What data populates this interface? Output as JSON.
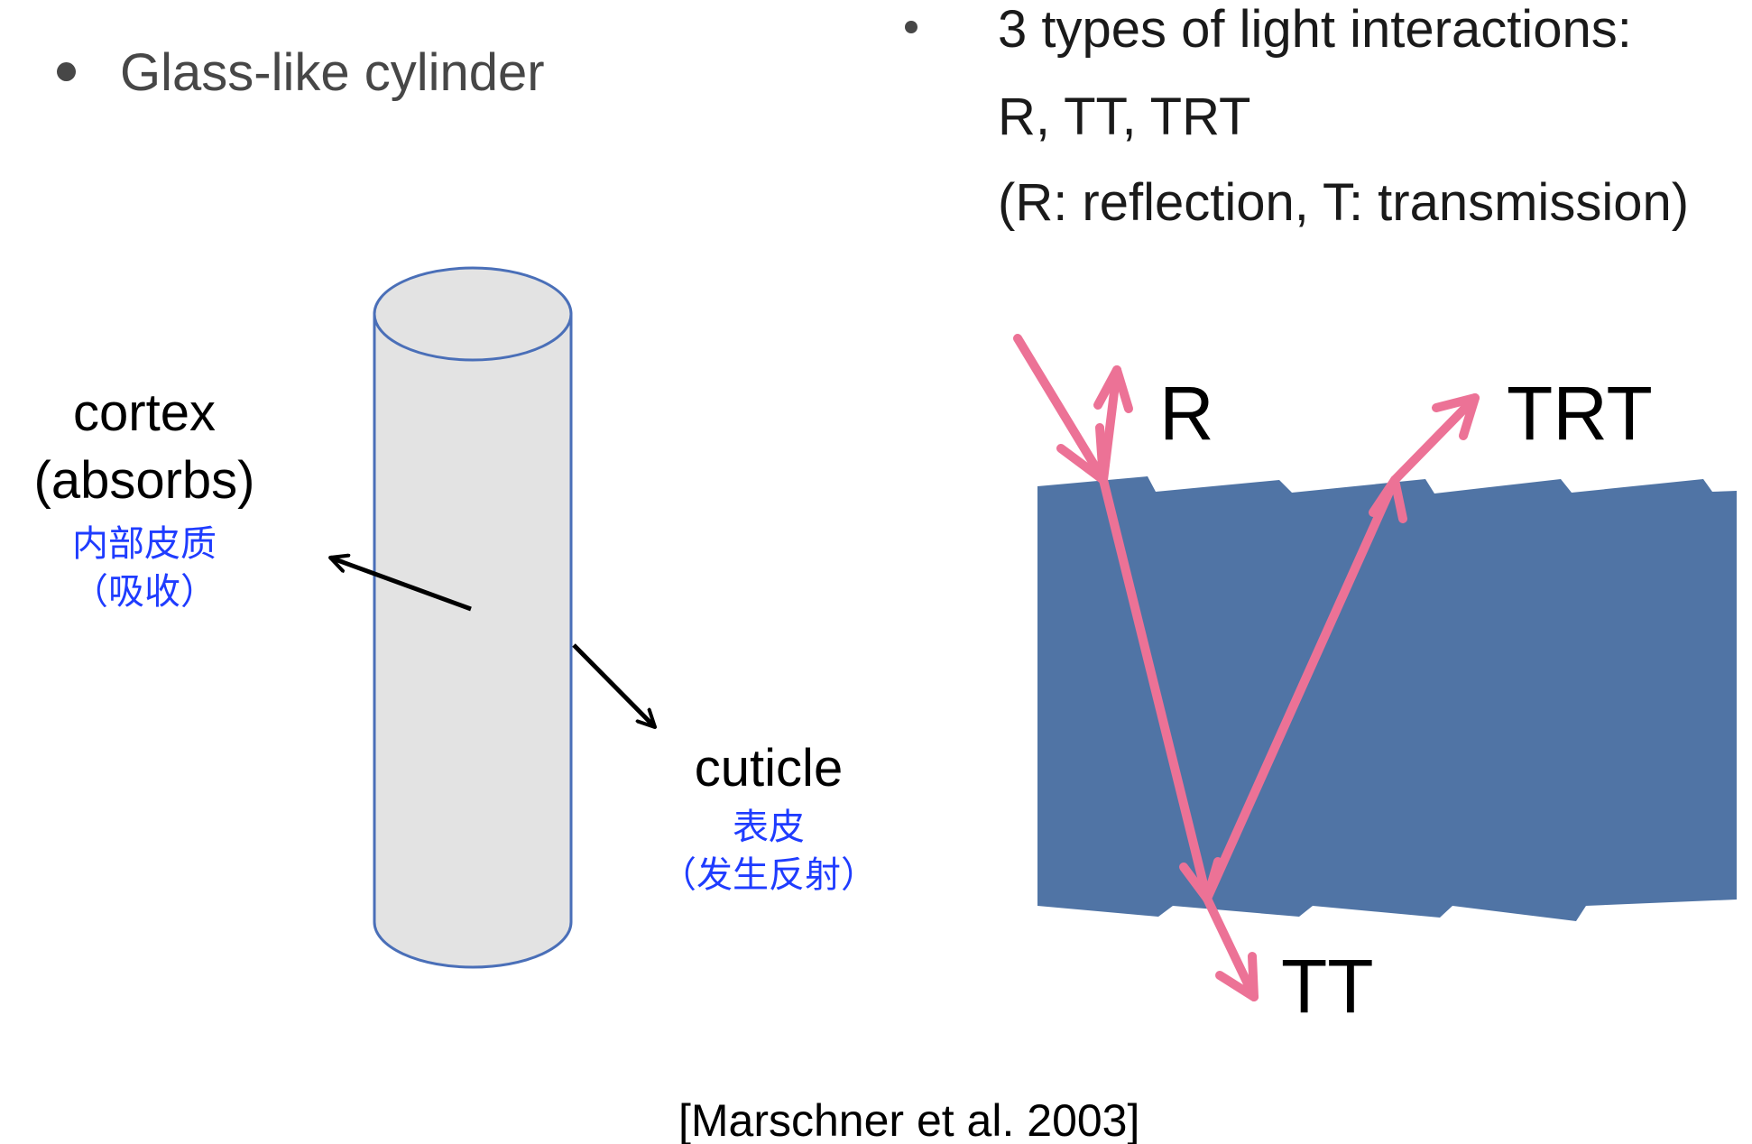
{
  "left_bullet": {
    "text": "Glass-like cylinder"
  },
  "right_bullet": {
    "line1": "3 types of light interactions:",
    "line2": "R, TT, TRT",
    "line3": "(R: reflection, T: transmission)"
  },
  "cortex": {
    "label": "cortex",
    "sublabel": "(absorbs)",
    "cn_line1": "内部皮质",
    "cn_line2": "（吸收）"
  },
  "cuticle": {
    "label": "cuticle",
    "cn_line1": "表皮",
    "cn_line2": "（发生反射）"
  },
  "rays": {
    "r": "R",
    "trt": "TRT",
    "tt": "TT"
  },
  "citation": "[Marschner et al. 2003]",
  "colors": {
    "fiber": "#5074a5",
    "ray": "#ec7296",
    "cylinder_fill": "#e3e3e3",
    "cylinder_stroke": "#4a6fb8",
    "chinese_text": "#1f3cff"
  }
}
